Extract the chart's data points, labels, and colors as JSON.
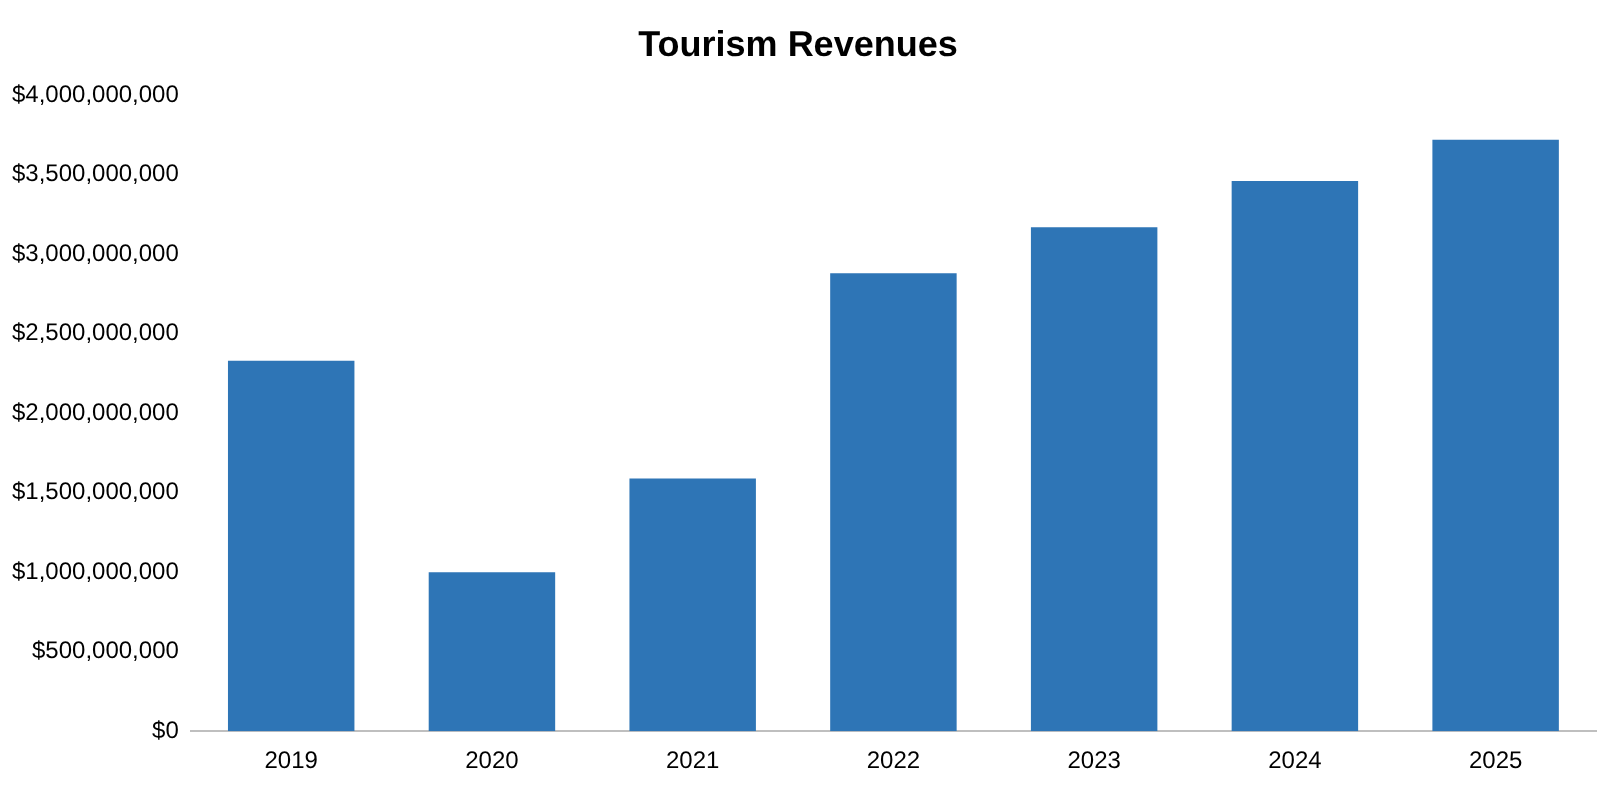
{
  "chart_data": {
    "type": "bar",
    "title": "Tourism Revenues",
    "categories": [
      "2019",
      "2020",
      "2021",
      "2022",
      "2023",
      "2024",
      "2025"
    ],
    "values": [
      2330000000,
      1000000000,
      1590000000,
      2880000000,
      3170000000,
      3460000000,
      3720000000
    ],
    "color": "#2e75b6",
    "ylim": [
      0,
      4000000000
    ],
    "yticks": [
      {
        "value": 0,
        "label": "$0"
      },
      {
        "value": 500000000,
        "label": "$500,000,000"
      },
      {
        "value": 1000000000,
        "label": "$1,000,000,000"
      },
      {
        "value": 1500000000,
        "label": "$1,500,000,000"
      },
      {
        "value": 2000000000,
        "label": "$2,000,000,000"
      },
      {
        "value": 2500000000,
        "label": "$2,500,000,000"
      },
      {
        "value": 3000000000,
        "label": "$3,000,000,000"
      },
      {
        "value": 3500000000,
        "label": "$3,500,000,000"
      },
      {
        "value": 4000000000,
        "label": "$4,000,000,000"
      }
    ],
    "grid": false,
    "legend": false
  }
}
